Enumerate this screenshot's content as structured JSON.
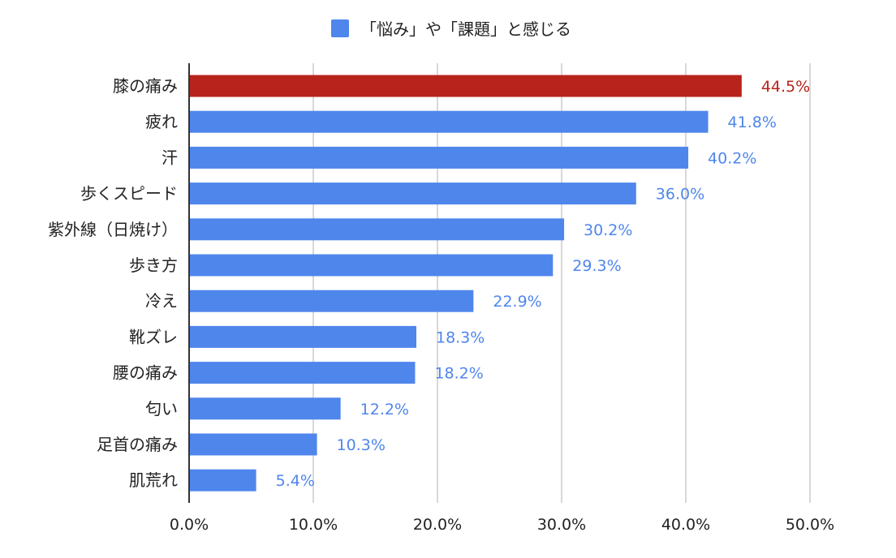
{
  "chart_data": {
    "type": "bar",
    "orientation": "horizontal",
    "series": [
      {
        "name": "「悩み」や「課題」と感じる",
        "color": "#4f86ec"
      }
    ],
    "categories": [
      "膝の痛み",
      "疲れ",
      "汗",
      "歩くスピード",
      "紫外線（日焼け）",
      "歩き方",
      "冷え",
      "靴ズレ",
      "腰の痛み",
      "匂い",
      "足首の痛み",
      "肌荒れ"
    ],
    "values": [
      44.5,
      41.8,
      40.2,
      36.0,
      30.2,
      29.3,
      22.9,
      18.3,
      18.2,
      12.2,
      10.3,
      5.4
    ],
    "data_labels": [
      "44.5%",
      "41.8%",
      "40.2%",
      "36.0%",
      "30.2%",
      "29.3%",
      "22.9%",
      "18.3%",
      "18.2%",
      "12.2%",
      "10.3%",
      "5.4%"
    ],
    "highlight": {
      "category": "膝の痛み",
      "color": "#b8241c"
    },
    "xlim": [
      0,
      50
    ],
    "x_ticks": [
      0,
      10,
      20,
      30,
      40,
      50
    ],
    "x_tick_labels": [
      "0.0%",
      "10.0%",
      "20.0%",
      "30.0%",
      "40.0%",
      "50.0%"
    ],
    "grid": true,
    "legend_position": "top",
    "colors": {
      "bar": "#4f86ec",
      "highlight": "#b8241c",
      "grid": "#cccccc",
      "axis": "#333333",
      "text": "#222222"
    }
  }
}
